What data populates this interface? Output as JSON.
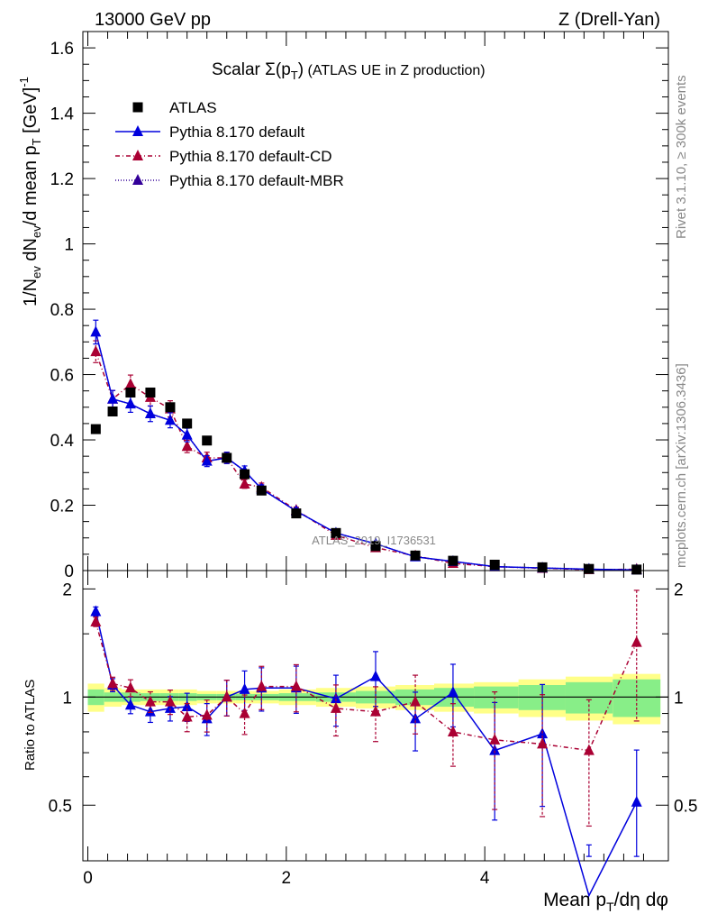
{
  "header": {
    "energy": "13000 GeV pp",
    "process": "Z (Drell-Yan)"
  },
  "side_labels": {
    "rivet": "Rivet 3.1.10, ≥ 300k events",
    "mcplots": "mcplots.cern.ch [arXiv:1306.3436]"
  },
  "chart_data": [
    {
      "type": "scatter",
      "title_main": "Scalar Σ(p",
      "title_sub": "T",
      "title_close": ")",
      "title_rest": " (ATLAS UE in Z production)",
      "ylabel": "1/N_ev dN_ev/d mean p_T [GeV]^-1",
      "watermark": "ATLAS_2019_I1736531",
      "xlim": [
        -0.05,
        5.85
      ],
      "ylim": [
        0,
        1.65
      ],
      "yticks": [
        "0",
        "0.2",
        "0.4",
        "0.6",
        "0.8",
        "1",
        "1.2",
        "1.4",
        "1.6"
      ],
      "ytick_values": [
        0,
        0.2,
        0.4,
        0.6,
        0.8,
        1.0,
        1.2,
        1.4,
        1.6
      ],
      "legend": [
        {
          "label": "ATLAS",
          "color": "#000000"
        },
        {
          "label": "Pythia 8.170 default",
          "color": "#0000dd"
        },
        {
          "label": "Pythia 8.170 default-CD",
          "color": "#aa0033"
        },
        {
          "label": "Pythia 8.170 default-MBR",
          "color": "#330099"
        }
      ],
      "x": [
        0.08,
        0.25,
        0.43,
        0.63,
        0.83,
        1.0,
        1.2,
        1.4,
        1.58,
        1.75,
        2.1,
        2.5,
        2.9,
        3.3,
        3.68,
        4.1,
        4.58,
        5.05,
        5.53
      ],
      "series": [
        {
          "name": "ATLAS",
          "values": [
            0.433,
            0.487,
            0.545,
            0.545,
            0.5,
            0.45,
            0.398,
            0.345,
            0.295,
            0.245,
            0.175,
            0.115,
            0.075,
            0.046,
            0.03,
            0.018,
            0.01,
            0.005,
            0.003
          ]
        },
        {
          "name": "Pythia 8.170 default",
          "values": [
            0.73,
            0.525,
            0.51,
            0.48,
            0.46,
            0.415,
            0.335,
            0.345,
            0.305,
            0.25,
            0.182,
            0.115,
            0.082,
            0.042,
            0.028,
            0.012,
            0.008,
            0.004,
            0.002
          ]
        },
        {
          "name": "Pythia 8.170 default-CD",
          "values": [
            0.67,
            0.525,
            0.57,
            0.53,
            0.495,
            0.38,
            0.345,
            0.345,
            0.265,
            0.255,
            0.185,
            0.108,
            0.07,
            0.045,
            0.022,
            0.012,
            0.007,
            0.003,
            0.004
          ]
        },
        {
          "name": "Pythia 8.170 default-MBR",
          "values": [
            0.73,
            0.525,
            0.51,
            0.48,
            0.46,
            0.415,
            0.335,
            0.345,
            0.305,
            0.25,
            0.182,
            0.115,
            0.082,
            0.042,
            0.028,
            0.012,
            0.008,
            0.004,
            0.002
          ]
        }
      ]
    },
    {
      "type": "line",
      "ylabel": "Ratio to ATLAS",
      "xlabel": "Mean p_T/dη dφ",
      "xlim": [
        -0.05,
        5.85
      ],
      "ylim": [
        0.35,
        2.25
      ],
      "yticks": [
        "0.5",
        "1",
        "2"
      ],
      "ytick_values": [
        0.5,
        1.0,
        2.0
      ],
      "xticks": [
        "0",
        "2",
        "4"
      ],
      "xtick_values": [
        0,
        2,
        4
      ],
      "x": [
        0.08,
        0.25,
        0.43,
        0.63,
        0.83,
        1.0,
        1.2,
        1.4,
        1.58,
        1.75,
        2.1,
        2.5,
        2.9,
        3.3,
        3.68,
        4.1,
        4.58,
        5.05,
        5.53
      ],
      "series": [
        {
          "name": "Pythia 8.170 default",
          "values": [
            1.73,
            1.08,
            0.95,
            0.91,
            0.93,
            0.94,
            0.87,
            1.0,
            1.05,
            1.06,
            1.06,
            0.99,
            1.14,
            0.87,
            1.03,
            0.71,
            0.79,
            0.28,
            0.51
          ]
        },
        {
          "name": "Pythia 8.170 default-CD",
          "values": [
            1.62,
            1.09,
            1.06,
            0.97,
            0.97,
            0.88,
            0.89,
            1.0,
            0.9,
            1.07,
            1.07,
            0.93,
            0.91,
            0.97,
            0.8,
            0.76,
            0.74,
            0.71,
            1.42
          ]
        }
      ],
      "band_yellow_halfwidth": [
        0.09,
        0.06,
        0.05,
        0.05,
        0.05,
        0.05,
        0.04,
        0.04,
        0.04,
        0.04,
        0.05,
        0.06,
        0.07,
        0.08,
        0.09,
        0.1,
        0.12,
        0.14,
        0.16
      ],
      "band_green_halfwidth": [
        0.05,
        0.03,
        0.03,
        0.025,
        0.025,
        0.025,
        0.02,
        0.02,
        0.02,
        0.02,
        0.025,
        0.03,
        0.04,
        0.05,
        0.06,
        0.07,
        0.08,
        0.1,
        0.12
      ]
    }
  ]
}
